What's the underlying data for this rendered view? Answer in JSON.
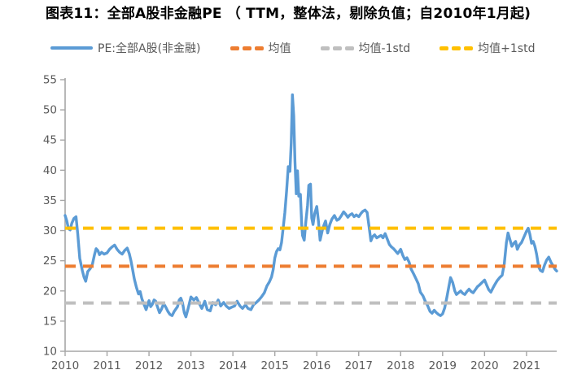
{
  "title": "图表11：全部A股非金融PE （ TTM，整体法，剔除负值；自2010年1月起)",
  "colors": {
    "pe_line": "#5B9BD5",
    "mean_line": "#ED7D31",
    "minus1std_line": "#BFBFBF",
    "plus1std_line": "#FFC000",
    "axis": "#A6A6A6",
    "tick_label": "#595959",
    "legend_text": "#595959",
    "title_text": "#000000"
  },
  "legend": {
    "items": [
      {
        "name": "pe-series",
        "label": "PE:全部A股(非金融)",
        "color": "#5B9BD5",
        "swatch": "line"
      },
      {
        "name": "mean",
        "label": "均值",
        "color": "#ED7D31",
        "swatch": "dashes"
      },
      {
        "name": "mean-minus-1std",
        "label": "均值-1std",
        "color": "#BFBFBF",
        "swatch": "dashes"
      },
      {
        "name": "mean-plus-1std",
        "label": "均值+1std",
        "color": "#FFC000",
        "swatch": "dashes"
      }
    ]
  },
  "chart_data": {
    "type": "line",
    "title": "图表11：全部A股非金融PE （ TTM，整体法，剔除负值；自2010年1月起)",
    "xlabel": "",
    "ylabel": "",
    "ylim": [
      10,
      55
    ],
    "y_ticks": [
      10,
      15,
      20,
      25,
      30,
      35,
      40,
      45,
      50,
      55
    ],
    "x_ticks": [
      2010,
      2011,
      2012,
      2013,
      2014,
      2015,
      2016,
      2017,
      2018,
      2019,
      2020,
      2021
    ],
    "xlim": [
      2010.0,
      2021.72
    ],
    "grid": false,
    "legend_position": "top",
    "series": [
      {
        "name": "PE:全部A股(非金融)",
        "kind": "line",
        "color": "#5B9BD5",
        "points": [
          [
            2010.0,
            32.5
          ],
          [
            2010.04,
            31.6
          ],
          [
            2010.08,
            30.3
          ],
          [
            2010.12,
            30.1
          ],
          [
            2010.16,
            31.2
          ],
          [
            2010.21,
            32.0
          ],
          [
            2010.26,
            32.3
          ],
          [
            2010.3,
            29.5
          ],
          [
            2010.35,
            25.4
          ],
          [
            2010.41,
            23.4
          ],
          [
            2010.45,
            22.3
          ],
          [
            2010.49,
            21.6
          ],
          [
            2010.54,
            23.2
          ],
          [
            2010.6,
            23.7
          ],
          [
            2010.65,
            24.4
          ],
          [
            2010.7,
            26.0
          ],
          [
            2010.74,
            27.0
          ],
          [
            2010.78,
            26.7
          ],
          [
            2010.82,
            26.0
          ],
          [
            2010.87,
            26.4
          ],
          [
            2010.93,
            26.1
          ],
          [
            2011.0,
            26.3
          ],
          [
            2011.06,
            26.9
          ],
          [
            2011.12,
            27.3
          ],
          [
            2011.18,
            27.6
          ],
          [
            2011.24,
            26.9
          ],
          [
            2011.3,
            26.4
          ],
          [
            2011.36,
            26.1
          ],
          [
            2011.42,
            26.7
          ],
          [
            2011.48,
            27.1
          ],
          [
            2011.53,
            26.2
          ],
          [
            2011.57,
            25.0
          ],
          [
            2011.61,
            23.5
          ],
          [
            2011.65,
            22.0
          ],
          [
            2011.7,
            20.6
          ],
          [
            2011.75,
            19.5
          ],
          [
            2011.79,
            19.9
          ],
          [
            2011.83,
            18.7
          ],
          [
            2011.88,
            17.8
          ],
          [
            2011.93,
            16.9
          ],
          [
            2012.0,
            18.4
          ],
          [
            2012.04,
            17.4
          ],
          [
            2012.08,
            17.8
          ],
          [
            2012.12,
            18.5
          ],
          [
            2012.16,
            18.3
          ],
          [
            2012.2,
            17.4
          ],
          [
            2012.25,
            16.4
          ],
          [
            2012.3,
            17.0
          ],
          [
            2012.35,
            17.9
          ],
          [
            2012.4,
            17.3
          ],
          [
            2012.45,
            16.6
          ],
          [
            2012.5,
            16.1
          ],
          [
            2012.55,
            15.9
          ],
          [
            2012.6,
            16.6
          ],
          [
            2012.64,
            17.0
          ],
          [
            2012.68,
            17.4
          ],
          [
            2012.72,
            18.5
          ],
          [
            2012.76,
            18.8
          ],
          [
            2012.8,
            18.0
          ],
          [
            2012.84,
            16.4
          ],
          [
            2012.88,
            15.7
          ],
          [
            2012.93,
            17.0
          ],
          [
            2013.0,
            19.0
          ],
          [
            2013.07,
            18.5
          ],
          [
            2013.13,
            18.9
          ],
          [
            2013.2,
            17.9
          ],
          [
            2013.26,
            17.1
          ],
          [
            2013.33,
            18.3
          ],
          [
            2013.39,
            16.9
          ],
          [
            2013.46,
            16.7
          ],
          [
            2013.52,
            18.1
          ],
          [
            2013.59,
            17.7
          ],
          [
            2013.65,
            18.5
          ],
          [
            2013.71,
            17.5
          ],
          [
            2013.78,
            18.1
          ],
          [
            2013.84,
            17.5
          ],
          [
            2013.91,
            17.1
          ],
          [
            2013.97,
            17.3
          ],
          [
            2014.04,
            17.5
          ],
          [
            2014.1,
            18.3
          ],
          [
            2014.17,
            17.5
          ],
          [
            2014.23,
            17.1
          ],
          [
            2014.3,
            17.7
          ],
          [
            2014.36,
            17.1
          ],
          [
            2014.43,
            16.9
          ],
          [
            2014.49,
            17.7
          ],
          [
            2014.56,
            18.1
          ],
          [
            2014.62,
            18.5
          ],
          [
            2014.68,
            19.0
          ],
          [
            2014.75,
            19.7
          ],
          [
            2014.81,
            20.8
          ],
          [
            2014.87,
            21.5
          ],
          [
            2014.92,
            22.3
          ],
          [
            2014.96,
            23.5
          ],
          [
            2015.0,
            25.5
          ],
          [
            2015.04,
            26.5
          ],
          [
            2015.08,
            27.0
          ],
          [
            2015.12,
            26.8
          ],
          [
            2015.16,
            28.0
          ],
          [
            2015.2,
            30.5
          ],
          [
            2015.24,
            33.0
          ],
          [
            2015.28,
            36.5
          ],
          [
            2015.32,
            40.6
          ],
          [
            2015.36,
            39.8
          ],
          [
            2015.39,
            44.5
          ],
          [
            2015.42,
            52.5
          ],
          [
            2015.45,
            49.0
          ],
          [
            2015.48,
            41.5
          ],
          [
            2015.51,
            36.1
          ],
          [
            2015.54,
            39.9
          ],
          [
            2015.57,
            35.7
          ],
          [
            2015.61,
            36.0
          ],
          [
            2015.64,
            31.0
          ],
          [
            2015.66,
            29.2
          ],
          [
            2015.7,
            28.4
          ],
          [
            2015.74,
            31.5
          ],
          [
            2015.78,
            34.2
          ],
          [
            2015.81,
            37.5
          ],
          [
            2015.85,
            37.7
          ],
          [
            2015.88,
            32.1
          ],
          [
            2015.91,
            31.0
          ],
          [
            2015.95,
            32.8
          ],
          [
            2016.0,
            34.0
          ],
          [
            2016.04,
            31.5
          ],
          [
            2016.08,
            28.4
          ],
          [
            2016.13,
            30.0
          ],
          [
            2016.17,
            30.9
          ],
          [
            2016.21,
            31.6
          ],
          [
            2016.26,
            29.6
          ],
          [
            2016.31,
            31.0
          ],
          [
            2016.36,
            31.9
          ],
          [
            2016.42,
            32.5
          ],
          [
            2016.48,
            31.7
          ],
          [
            2016.53,
            31.9
          ],
          [
            2016.58,
            32.4
          ],
          [
            2016.64,
            33.1
          ],
          [
            2016.69,
            32.7
          ],
          [
            2016.74,
            32.2
          ],
          [
            2016.79,
            32.6
          ],
          [
            2016.84,
            32.8
          ],
          [
            2016.89,
            32.3
          ],
          [
            2016.94,
            32.6
          ],
          [
            2017.0,
            32.3
          ],
          [
            2017.05,
            32.8
          ],
          [
            2017.1,
            33.2
          ],
          [
            2017.15,
            33.4
          ],
          [
            2017.2,
            33.0
          ],
          [
            2017.25,
            30.5
          ],
          [
            2017.29,
            28.3
          ],
          [
            2017.33,
            29.0
          ],
          [
            2017.38,
            29.3
          ],
          [
            2017.43,
            28.8
          ],
          [
            2017.48,
            29.0
          ],
          [
            2017.53,
            29.2
          ],
          [
            2017.58,
            28.8
          ],
          [
            2017.63,
            29.5
          ],
          [
            2017.68,
            28.6
          ],
          [
            2017.73,
            27.7
          ],
          [
            2017.78,
            27.3
          ],
          [
            2017.83,
            27.0
          ],
          [
            2017.88,
            26.6
          ],
          [
            2017.93,
            26.2
          ],
          [
            2018.0,
            26.9
          ],
          [
            2018.05,
            25.9
          ],
          [
            2018.1,
            25.2
          ],
          [
            2018.15,
            25.5
          ],
          [
            2018.2,
            24.8
          ],
          [
            2018.25,
            23.6
          ],
          [
            2018.31,
            22.8
          ],
          [
            2018.36,
            22.1
          ],
          [
            2018.42,
            21.2
          ],
          [
            2018.47,
            19.8
          ],
          [
            2018.53,
            19.2
          ],
          [
            2018.58,
            18.4
          ],
          [
            2018.64,
            17.6
          ],
          [
            2018.7,
            16.6
          ],
          [
            2018.75,
            16.3
          ],
          [
            2018.8,
            16.8
          ],
          [
            2018.85,
            16.4
          ],
          [
            2018.9,
            16.1
          ],
          [
            2018.95,
            15.9
          ],
          [
            2019.0,
            16.2
          ],
          [
            2019.05,
            17.2
          ],
          [
            2019.1,
            18.9
          ],
          [
            2019.15,
            20.8
          ],
          [
            2019.19,
            22.2
          ],
          [
            2019.24,
            21.4
          ],
          [
            2019.29,
            20.0
          ],
          [
            2019.33,
            19.4
          ],
          [
            2019.38,
            19.7
          ],
          [
            2019.43,
            20.0
          ],
          [
            2019.48,
            19.6
          ],
          [
            2019.53,
            19.4
          ],
          [
            2019.58,
            19.9
          ],
          [
            2019.63,
            20.3
          ],
          [
            2019.68,
            19.9
          ],
          [
            2019.73,
            19.7
          ],
          [
            2019.78,
            20.2
          ],
          [
            2019.83,
            20.7
          ],
          [
            2019.88,
            21.0
          ],
          [
            2019.94,
            21.4
          ],
          [
            2020.0,
            21.8
          ],
          [
            2020.05,
            21.0
          ],
          [
            2020.1,
            20.2
          ],
          [
            2020.15,
            19.8
          ],
          [
            2020.2,
            20.5
          ],
          [
            2020.25,
            21.1
          ],
          [
            2020.3,
            21.7
          ],
          [
            2020.36,
            22.2
          ],
          [
            2020.42,
            22.6
          ],
          [
            2020.47,
            24.5
          ],
          [
            2020.52,
            28.0
          ],
          [
            2020.56,
            29.6
          ],
          [
            2020.6,
            28.6
          ],
          [
            2020.65,
            27.4
          ],
          [
            2020.7,
            27.9
          ],
          [
            2020.74,
            28.2
          ],
          [
            2020.78,
            26.9
          ],
          [
            2020.83,
            27.6
          ],
          [
            2020.88,
            28.0
          ],
          [
            2020.93,
            28.8
          ],
          [
            2021.0,
            29.9
          ],
          [
            2021.04,
            30.4
          ],
          [
            2021.08,
            29.4
          ],
          [
            2021.12,
            27.9
          ],
          [
            2021.16,
            28.2
          ],
          [
            2021.2,
            27.4
          ],
          [
            2021.24,
            26.1
          ],
          [
            2021.29,
            24.0
          ],
          [
            2021.33,
            23.4
          ],
          [
            2021.38,
            23.2
          ],
          [
            2021.43,
            24.3
          ],
          [
            2021.48,
            25.1
          ],
          [
            2021.53,
            25.6
          ],
          [
            2021.58,
            24.8
          ],
          [
            2021.63,
            24.2
          ],
          [
            2021.68,
            23.6
          ],
          [
            2021.72,
            23.3
          ]
        ]
      },
      {
        "name": "均值",
        "kind": "hline",
        "color": "#ED7D31",
        "value": 24.1
      },
      {
        "name": "均值-1std",
        "kind": "hline",
        "color": "#BFBFBF",
        "value": 18.0
      },
      {
        "name": "均值+1std",
        "kind": "hline",
        "color": "#FFC000",
        "value": 30.4
      }
    ]
  }
}
